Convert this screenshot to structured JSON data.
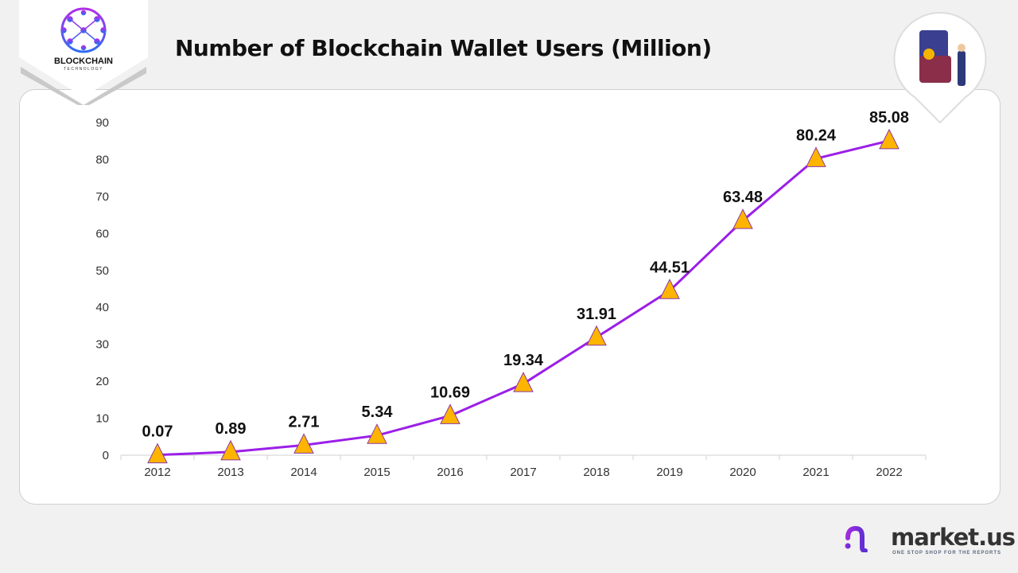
{
  "header": {
    "title": "Number of Blockchain Wallet Users (Million)"
  },
  "logo": {
    "text": "BLOCKCHAIN",
    "subtext": "TECHNOLOGY"
  },
  "brand": {
    "name": "market.us",
    "tagline": "ONE STOP SHOP FOR THE REPORTS"
  },
  "chart_data": {
    "type": "line",
    "title": "Number of Blockchain Wallet Users (Million)",
    "categories": [
      "2012",
      "2013",
      "2014",
      "2015",
      "2016",
      "2017",
      "2018",
      "2019",
      "2020",
      "2021",
      "2022"
    ],
    "values": [
      0.07,
      0.89,
      2.71,
      5.34,
      10.69,
      19.34,
      31.91,
      44.51,
      63.48,
      80.24,
      85.08
    ],
    "data_labels": [
      "0.07",
      "0.89",
      "2.71",
      "5.34",
      "10.69",
      "19.34",
      "31.91",
      "44.51",
      "63.48",
      "80.24",
      "85.08"
    ],
    "ylim": [
      0,
      90
    ],
    "yticks": [
      0,
      10,
      20,
      30,
      40,
      50,
      60,
      70,
      80,
      90
    ],
    "grid": false,
    "line_color": "#9b1fe8",
    "marker": "triangle",
    "marker_color": "#ffb400"
  }
}
